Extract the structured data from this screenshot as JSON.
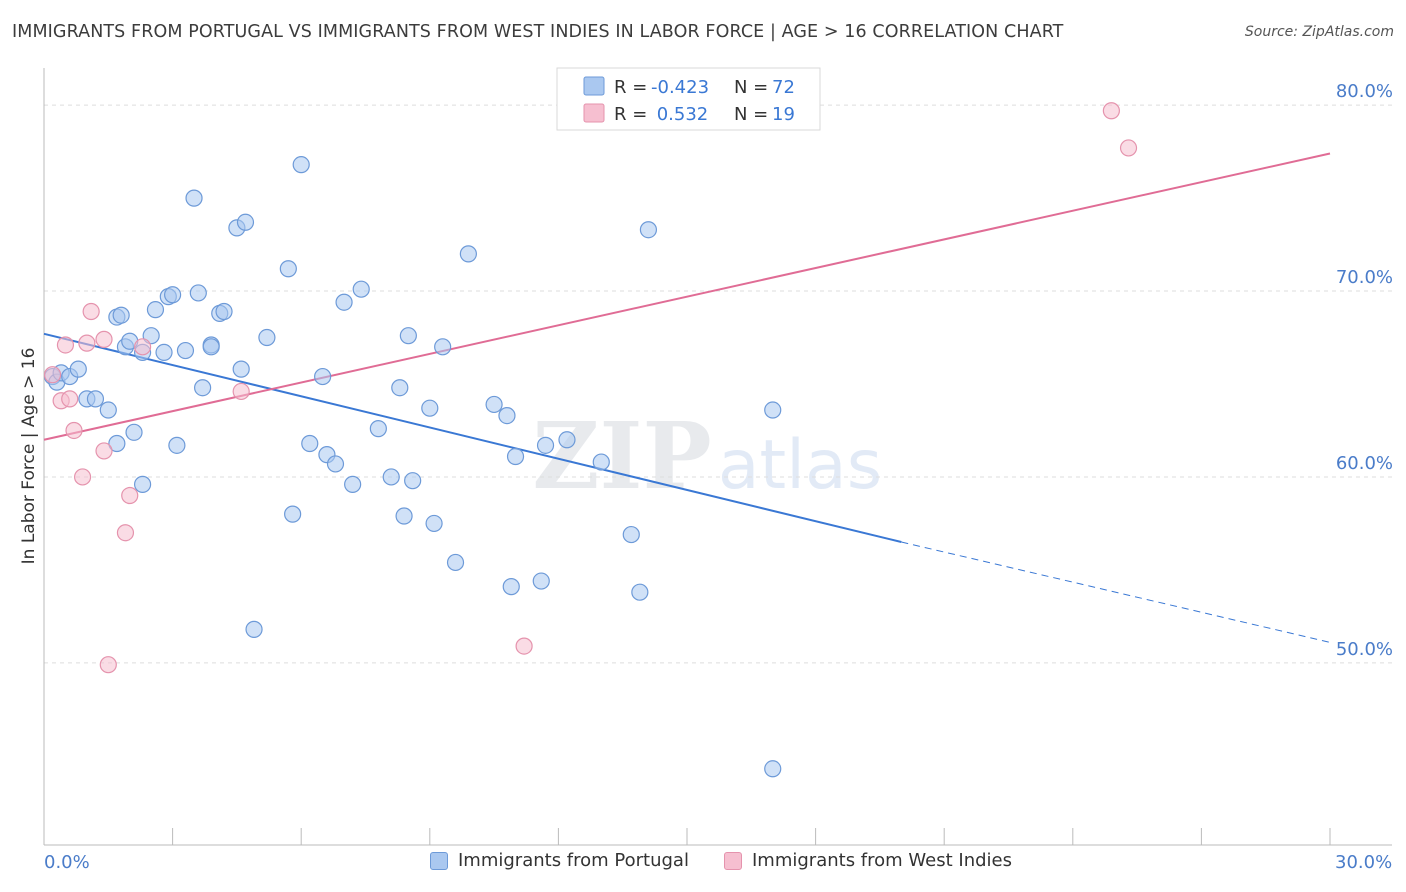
{
  "header": {
    "title": "IMMIGRANTS FROM PORTUGAL VS IMMIGRANTS FROM WEST INDIES IN LABOR FORCE | AGE > 16 CORRELATION CHART",
    "source": "Source: ZipAtlas.com"
  },
  "legend": {
    "rows": [
      {
        "r_label": "R =",
        "r_value": "-0.423",
        "n_label": "N =",
        "n_value": "72"
      },
      {
        "r_label": "R =",
        "r_value": " 0.532",
        "n_label": "N =",
        "n_value": "19"
      }
    ]
  },
  "bottom_legend": {
    "portugal": "Immigrants from Portugal",
    "west_indies": "Immigrants from West Indies"
  },
  "watermark": {
    "zip": "ZIP",
    "atlas": "atlas"
  },
  "colors": {
    "blue_fill": "#aac8f0",
    "blue_stroke": "#6d9ad8",
    "blue_line": "#3a78d4",
    "pink_fill": "#f6bfd0",
    "pink_stroke": "#e593ad",
    "pink_line": "#e06c95",
    "axis_label": "#4a7cc9",
    "grid": "#dddddd"
  },
  "chart_data": {
    "type": "scatter",
    "title": "IMMIGRANTS FROM PORTUGAL VS IMMIGRANTS FROM WEST INDIES IN LABOR FORCE | AGE > 16 CORRELATION CHART",
    "xlabel": "",
    "ylabel": "In Labor Force | Age > 16",
    "xlim": [
      0,
      30
    ],
    "ylim": [
      40.2,
      82
    ],
    "x_tick_labels": [
      "0.0%",
      "30.0%"
    ],
    "y_ticks": [
      50,
      60,
      70,
      80
    ],
    "y_tick_labels": [
      "50.0%",
      "60.0%",
      "70.0%",
      "80.0%"
    ],
    "grid": true,
    "legend_position": "top-center",
    "series": [
      {
        "name": "Immigrants from Portugal",
        "color": "blue",
        "R": -0.423,
        "N": 72,
        "points": [
          [
            0.2,
            65.4
          ],
          [
            0.3,
            65.1
          ],
          [
            0.4,
            65.6
          ],
          [
            0.6,
            65.4
          ],
          [
            0.8,
            65.8
          ],
          [
            1.0,
            64.2
          ],
          [
            1.2,
            64.2
          ],
          [
            1.5,
            63.6
          ],
          [
            1.7,
            68.6
          ],
          [
            1.7,
            61.8
          ],
          [
            1.8,
            68.7
          ],
          [
            1.9,
            67.0
          ],
          [
            2.0,
            67.3
          ],
          [
            2.1,
            62.4
          ],
          [
            2.3,
            66.7
          ],
          [
            2.3,
            59.6
          ],
          [
            2.5,
            67.6
          ],
          [
            2.6,
            69.0
          ],
          [
            2.8,
            66.7
          ],
          [
            2.9,
            69.7
          ],
          [
            3.0,
            69.8
          ],
          [
            3.1,
            61.7
          ],
          [
            3.3,
            66.8
          ],
          [
            3.5,
            75.0
          ],
          [
            3.6,
            69.9
          ],
          [
            3.7,
            64.8
          ],
          [
            3.9,
            67.1
          ],
          [
            3.9,
            67.0
          ],
          [
            4.1,
            68.8
          ],
          [
            4.2,
            68.9
          ],
          [
            4.5,
            73.4
          ],
          [
            4.6,
            65.8
          ],
          [
            4.7,
            73.7
          ],
          [
            4.9,
            51.8
          ],
          [
            5.2,
            67.5
          ],
          [
            5.7,
            71.2
          ],
          [
            5.8,
            58.0
          ],
          [
            6.0,
            76.8
          ],
          [
            6.2,
            61.8
          ],
          [
            6.5,
            65.4
          ],
          [
            6.6,
            61.2
          ],
          [
            6.8,
            60.7
          ],
          [
            7.0,
            69.4
          ],
          [
            7.2,
            59.6
          ],
          [
            7.4,
            70.1
          ],
          [
            7.8,
            62.6
          ],
          [
            8.1,
            60.0
          ],
          [
            8.3,
            64.8
          ],
          [
            8.4,
            57.9
          ],
          [
            8.5,
            67.6
          ],
          [
            8.6,
            59.8
          ],
          [
            9.0,
            63.7
          ],
          [
            9.1,
            57.5
          ],
          [
            9.3,
            67.0
          ],
          [
            9.6,
            55.4
          ],
          [
            9.9,
            72.0
          ],
          [
            10.5,
            63.9
          ],
          [
            10.8,
            63.3
          ],
          [
            10.9,
            54.1
          ],
          [
            11.0,
            61.1
          ],
          [
            11.6,
            54.4
          ],
          [
            11.7,
            61.7
          ],
          [
            12.2,
            62.0
          ],
          [
            13.0,
            60.8
          ],
          [
            13.7,
            56.9
          ],
          [
            13.9,
            53.8
          ],
          [
            14.1,
            73.3
          ],
          [
            17.0,
            63.6
          ],
          [
            17.0,
            44.3
          ]
        ],
        "trend_solid": {
          "x": [
            0,
            20
          ],
          "y": [
            67.7,
            56.5
          ]
        },
        "trend_dashed": {
          "x": [
            20,
            30
          ],
          "y": [
            56.5,
            51.1
          ]
        }
      },
      {
        "name": "Immigrants from West Indies",
        "color": "pink",
        "R": 0.532,
        "N": 19,
        "points": [
          [
            0.2,
            65.5
          ],
          [
            0.4,
            64.1
          ],
          [
            0.5,
            67.1
          ],
          [
            0.6,
            64.2
          ],
          [
            0.7,
            62.5
          ],
          [
            0.9,
            60.0
          ],
          [
            1.0,
            67.2
          ],
          [
            1.1,
            68.9
          ],
          [
            1.4,
            67.4
          ],
          [
            1.4,
            61.4
          ],
          [
            1.5,
            49.9
          ],
          [
            1.9,
            57.0
          ],
          [
            2.0,
            59.0
          ],
          [
            2.3,
            67.0
          ],
          [
            4.6,
            64.6
          ],
          [
            11.2,
            50.9
          ],
          [
            24.9,
            79.7
          ],
          [
            25.3,
            77.7
          ]
        ],
        "trend_solid": {
          "x": [
            0,
            30
          ],
          "y": [
            62.0,
            77.4
          ]
        }
      }
    ]
  }
}
